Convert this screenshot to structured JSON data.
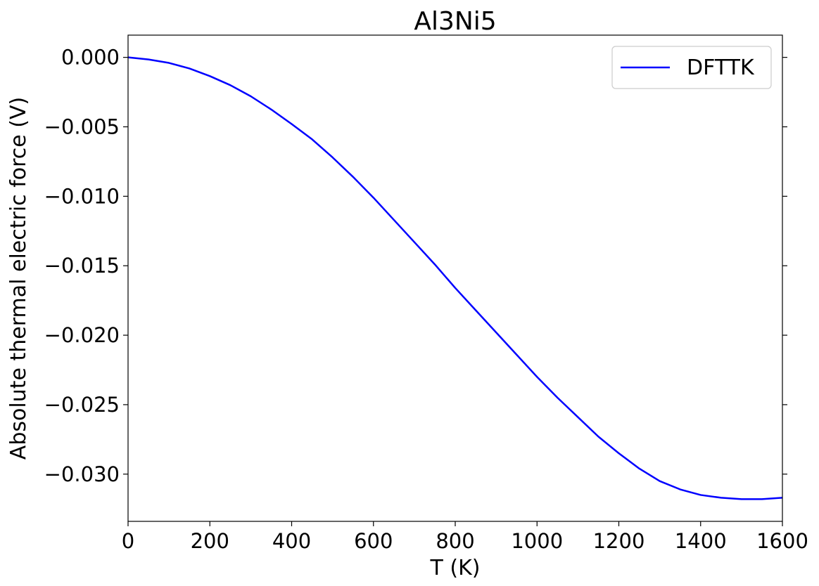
{
  "chart_data": {
    "type": "line",
    "title": "Al3Ni5",
    "xlabel": "T (K)",
    "ylabel": "Absolute thermal electric force (V)",
    "xlim": [
      0,
      1600
    ],
    "ylim": [
      -0.0334,
      0.0016
    ],
    "xticks": [
      0,
      200,
      400,
      600,
      800,
      1000,
      1200,
      1400,
      1600
    ],
    "xtick_labels": [
      "0",
      "200",
      "400",
      "600",
      "800",
      "1000",
      "1200",
      "1400",
      "1600"
    ],
    "yticks": [
      0.0,
      -0.005,
      -0.01,
      -0.015,
      -0.02,
      -0.025,
      -0.03
    ],
    "ytick_labels": [
      "0.000",
      "−0.005",
      "−0.010",
      "−0.015",
      "−0.020",
      "−0.025",
      "−0.030"
    ],
    "grid": false,
    "legend_position": "top-right",
    "series": [
      {
        "name": "DFTTK",
        "color": "#0000ff",
        "x": [
          0,
          50,
          100,
          150,
          200,
          250,
          300,
          350,
          400,
          450,
          500,
          550,
          600,
          650,
          700,
          750,
          800,
          850,
          900,
          950,
          1000,
          1050,
          1100,
          1150,
          1200,
          1250,
          1300,
          1350,
          1400,
          1450,
          1500,
          1550,
          1600
        ],
        "y": [
          0.0,
          -0.00015,
          -0.0004,
          -0.0008,
          -0.00135,
          -0.002,
          -0.0028,
          -0.00375,
          -0.0048,
          -0.0059,
          -0.0072,
          -0.0086,
          -0.0101,
          -0.0117,
          -0.0133,
          -0.0149,
          -0.0166,
          -0.0182,
          -0.0198,
          -0.0214,
          -0.023,
          -0.0245,
          -0.0259,
          -0.0273,
          -0.0285,
          -0.0296,
          -0.0305,
          -0.0311,
          -0.0315,
          -0.0317,
          -0.0318,
          -0.0318,
          -0.0317
        ]
      }
    ]
  }
}
